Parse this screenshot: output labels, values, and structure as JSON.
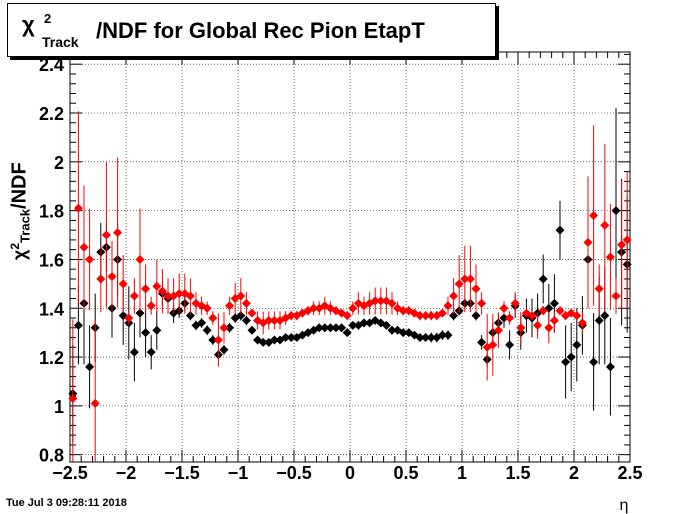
{
  "title": {
    "symbol": "χ",
    "superscript": "2",
    "subscript": "Track",
    "text": "/NDF for Global Rec Pion EtapT"
  },
  "yaxis": {
    "symbol": "χ",
    "superscript": "2",
    "subscript": "Track",
    "text": "/NDF"
  },
  "footer": "Tue Jul  3 09:28:11 2018",
  "chart_data": {
    "type": "scatter",
    "xlabel": "η",
    "xlim": [
      -2.5,
      2.5
    ],
    "ylim": [
      0.77,
      2.45
    ],
    "grid": true,
    "xticks": [
      "−2.5",
      "−2",
      "−1.5",
      "−1",
      "−0.5",
      "0",
      "0.5",
      "1",
      "1.5",
      "2",
      "2.5"
    ],
    "yticks": [
      "0.8",
      "1",
      "1.2",
      "1.4",
      "1.6",
      "1.8",
      "2",
      "2.2",
      "2.4"
    ],
    "series": [
      {
        "color": "#000000",
        "x": [
          -2.475,
          -2.425,
          -2.375,
          -2.325,
          -2.275,
          -2.225,
          -2.175,
          -2.125,
          -2.075,
          -2.025,
          -1.975,
          -1.925,
          -1.875,
          -1.825,
          -1.775,
          -1.725,
          -1.675,
          -1.625,
          -1.575,
          -1.525,
          -1.475,
          -1.425,
          -1.375,
          -1.325,
          -1.275,
          -1.225,
          -1.175,
          -1.125,
          -1.075,
          -1.025,
          -0.975,
          -0.925,
          -0.875,
          -0.825,
          -0.775,
          -0.725,
          -0.675,
          -0.625,
          -0.575,
          -0.525,
          -0.475,
          -0.425,
          -0.375,
          -0.325,
          -0.275,
          -0.225,
          -0.175,
          -0.125,
          -0.075,
          -0.025,
          0.025,
          0.075,
          0.125,
          0.175,
          0.225,
          0.275,
          0.325,
          0.375,
          0.425,
          0.475,
          0.525,
          0.575,
          0.625,
          0.675,
          0.725,
          0.775,
          0.825,
          0.875,
          0.925,
          0.975,
          1.025,
          1.075,
          1.125,
          1.175,
          1.225,
          1.275,
          1.325,
          1.375,
          1.425,
          1.475,
          1.525,
          1.575,
          1.625,
          1.675,
          1.725,
          1.775,
          1.825,
          1.875,
          1.925,
          1.975,
          2.025,
          2.075,
          2.125,
          2.175,
          2.225,
          2.275,
          2.325,
          2.375,
          2.425,
          2.475
        ],
        "y": [
          1.05,
          1.33,
          1.42,
          1.16,
          1.32,
          1.63,
          1.65,
          1.4,
          1.6,
          1.37,
          1.34,
          1.22,
          1.38,
          1.3,
          1.22,
          1.31,
          1.46,
          1.44,
          1.38,
          1.39,
          1.42,
          1.37,
          1.33,
          1.34,
          1.31,
          1.27,
          1.21,
          1.23,
          1.32,
          1.36,
          1.37,
          1.35,
          1.31,
          1.27,
          1.26,
          1.26,
          1.27,
          1.27,
          1.28,
          1.28,
          1.28,
          1.29,
          1.3,
          1.31,
          1.32,
          1.32,
          1.32,
          1.32,
          1.32,
          1.3,
          1.33,
          1.33,
          1.34,
          1.34,
          1.35,
          1.34,
          1.33,
          1.31,
          1.31,
          1.3,
          1.3,
          1.29,
          1.28,
          1.28,
          1.28,
          1.28,
          1.29,
          1.29,
          1.37,
          1.39,
          1.42,
          1.42,
          1.37,
          1.26,
          1.19,
          1.3,
          1.34,
          1.36,
          1.25,
          1.41,
          1.3,
          1.37,
          1.36,
          1.38,
          1.52,
          1.4,
          1.42,
          1.72,
          1.18,
          1.2,
          1.25,
          1.33,
          1.6,
          1.18,
          1.35,
          1.37,
          1.16,
          1.8,
          1.63,
          1.58
        ],
        "err": [
          0.2,
          0.16,
          0.25,
          0.17,
          0.14,
          0.12,
          0.1,
          0.12,
          0.15,
          0.12,
          0.15,
          0.12,
          0.1,
          0.1,
          0.07,
          0.08,
          0.05,
          0.05,
          0.04,
          0.03,
          0.03,
          0.02,
          0.02,
          0.02,
          0.02,
          0.02,
          0.02,
          0.02,
          0.02,
          0.02,
          0.02,
          0.02,
          0.01,
          0.01,
          0.01,
          0.01,
          0.01,
          0.01,
          0.01,
          0.01,
          0.01,
          0.01,
          0.01,
          0.01,
          0.01,
          0.01,
          0.01,
          0.01,
          0.01,
          0.01,
          0.01,
          0.01,
          0.01,
          0.01,
          0.01,
          0.01,
          0.01,
          0.01,
          0.01,
          0.01,
          0.01,
          0.01,
          0.01,
          0.01,
          0.02,
          0.02,
          0.02,
          0.02,
          0.02,
          0.02,
          0.02,
          0.02,
          0.02,
          0.03,
          0.03,
          0.04,
          0.04,
          0.04,
          0.06,
          0.05,
          0.07,
          0.07,
          0.08,
          0.08,
          0.1,
          0.1,
          0.12,
          0.12,
          0.15,
          0.14,
          0.15,
          0.12,
          0.2,
          0.2,
          0.18,
          0.2,
          0.2,
          0.42,
          0.3,
          0.28
        ]
      },
      {
        "color": "#ff0000",
        "x": [
          -2.475,
          -2.425,
          -2.375,
          -2.325,
          -2.275,
          -2.225,
          -2.175,
          -2.125,
          -2.075,
          -2.025,
          -1.975,
          -1.925,
          -1.875,
          -1.825,
          -1.775,
          -1.725,
          -1.675,
          -1.625,
          -1.575,
          -1.525,
          -1.475,
          -1.425,
          -1.375,
          -1.325,
          -1.275,
          -1.225,
          -1.175,
          -1.125,
          -1.075,
          -1.025,
          -0.975,
          -0.925,
          -0.875,
          -0.825,
          -0.775,
          -0.725,
          -0.675,
          -0.625,
          -0.575,
          -0.525,
          -0.475,
          -0.425,
          -0.375,
          -0.325,
          -0.275,
          -0.225,
          -0.175,
          -0.125,
          -0.075,
          -0.025,
          0.025,
          0.075,
          0.125,
          0.175,
          0.225,
          0.275,
          0.325,
          0.375,
          0.425,
          0.475,
          0.525,
          0.575,
          0.625,
          0.675,
          0.725,
          0.775,
          0.825,
          0.875,
          0.925,
          0.975,
          1.025,
          1.075,
          1.125,
          1.175,
          1.225,
          1.275,
          1.325,
          1.375,
          1.425,
          1.475,
          1.525,
          1.575,
          1.625,
          1.675,
          1.725,
          1.775,
          1.825,
          1.875,
          1.925,
          1.975,
          2.025,
          2.075,
          2.125,
          2.175,
          2.225,
          2.275,
          2.325,
          2.375,
          2.425,
          2.475
        ],
        "y": [
          1.03,
          1.81,
          1.65,
          1.6,
          1.01,
          1.52,
          1.7,
          1.53,
          1.71,
          1.5,
          1.36,
          1.45,
          1.6,
          1.48,
          1.41,
          1.49,
          1.47,
          1.45,
          1.45,
          1.46,
          1.46,
          1.45,
          1.42,
          1.41,
          1.4,
          1.36,
          1.27,
          1.32,
          1.41,
          1.44,
          1.45,
          1.42,
          1.38,
          1.35,
          1.34,
          1.35,
          1.35,
          1.35,
          1.36,
          1.37,
          1.37,
          1.38,
          1.39,
          1.4,
          1.4,
          1.41,
          1.4,
          1.39,
          1.38,
          1.37,
          1.4,
          1.42,
          1.41,
          1.42,
          1.43,
          1.43,
          1.43,
          1.42,
          1.4,
          1.39,
          1.39,
          1.38,
          1.37,
          1.37,
          1.37,
          1.37,
          1.38,
          1.41,
          1.45,
          1.5,
          1.52,
          1.52,
          1.48,
          1.42,
          1.24,
          1.25,
          1.31,
          1.4,
          1.36,
          1.42,
          1.32,
          1.38,
          1.37,
          1.33,
          1.39,
          1.32,
          1.35,
          1.39,
          1.37,
          1.38,
          1.37,
          1.34,
          1.67,
          1.78,
          1.48,
          1.74,
          1.61,
          1.45,
          1.66,
          1.68
        ]
      }
    ]
  }
}
